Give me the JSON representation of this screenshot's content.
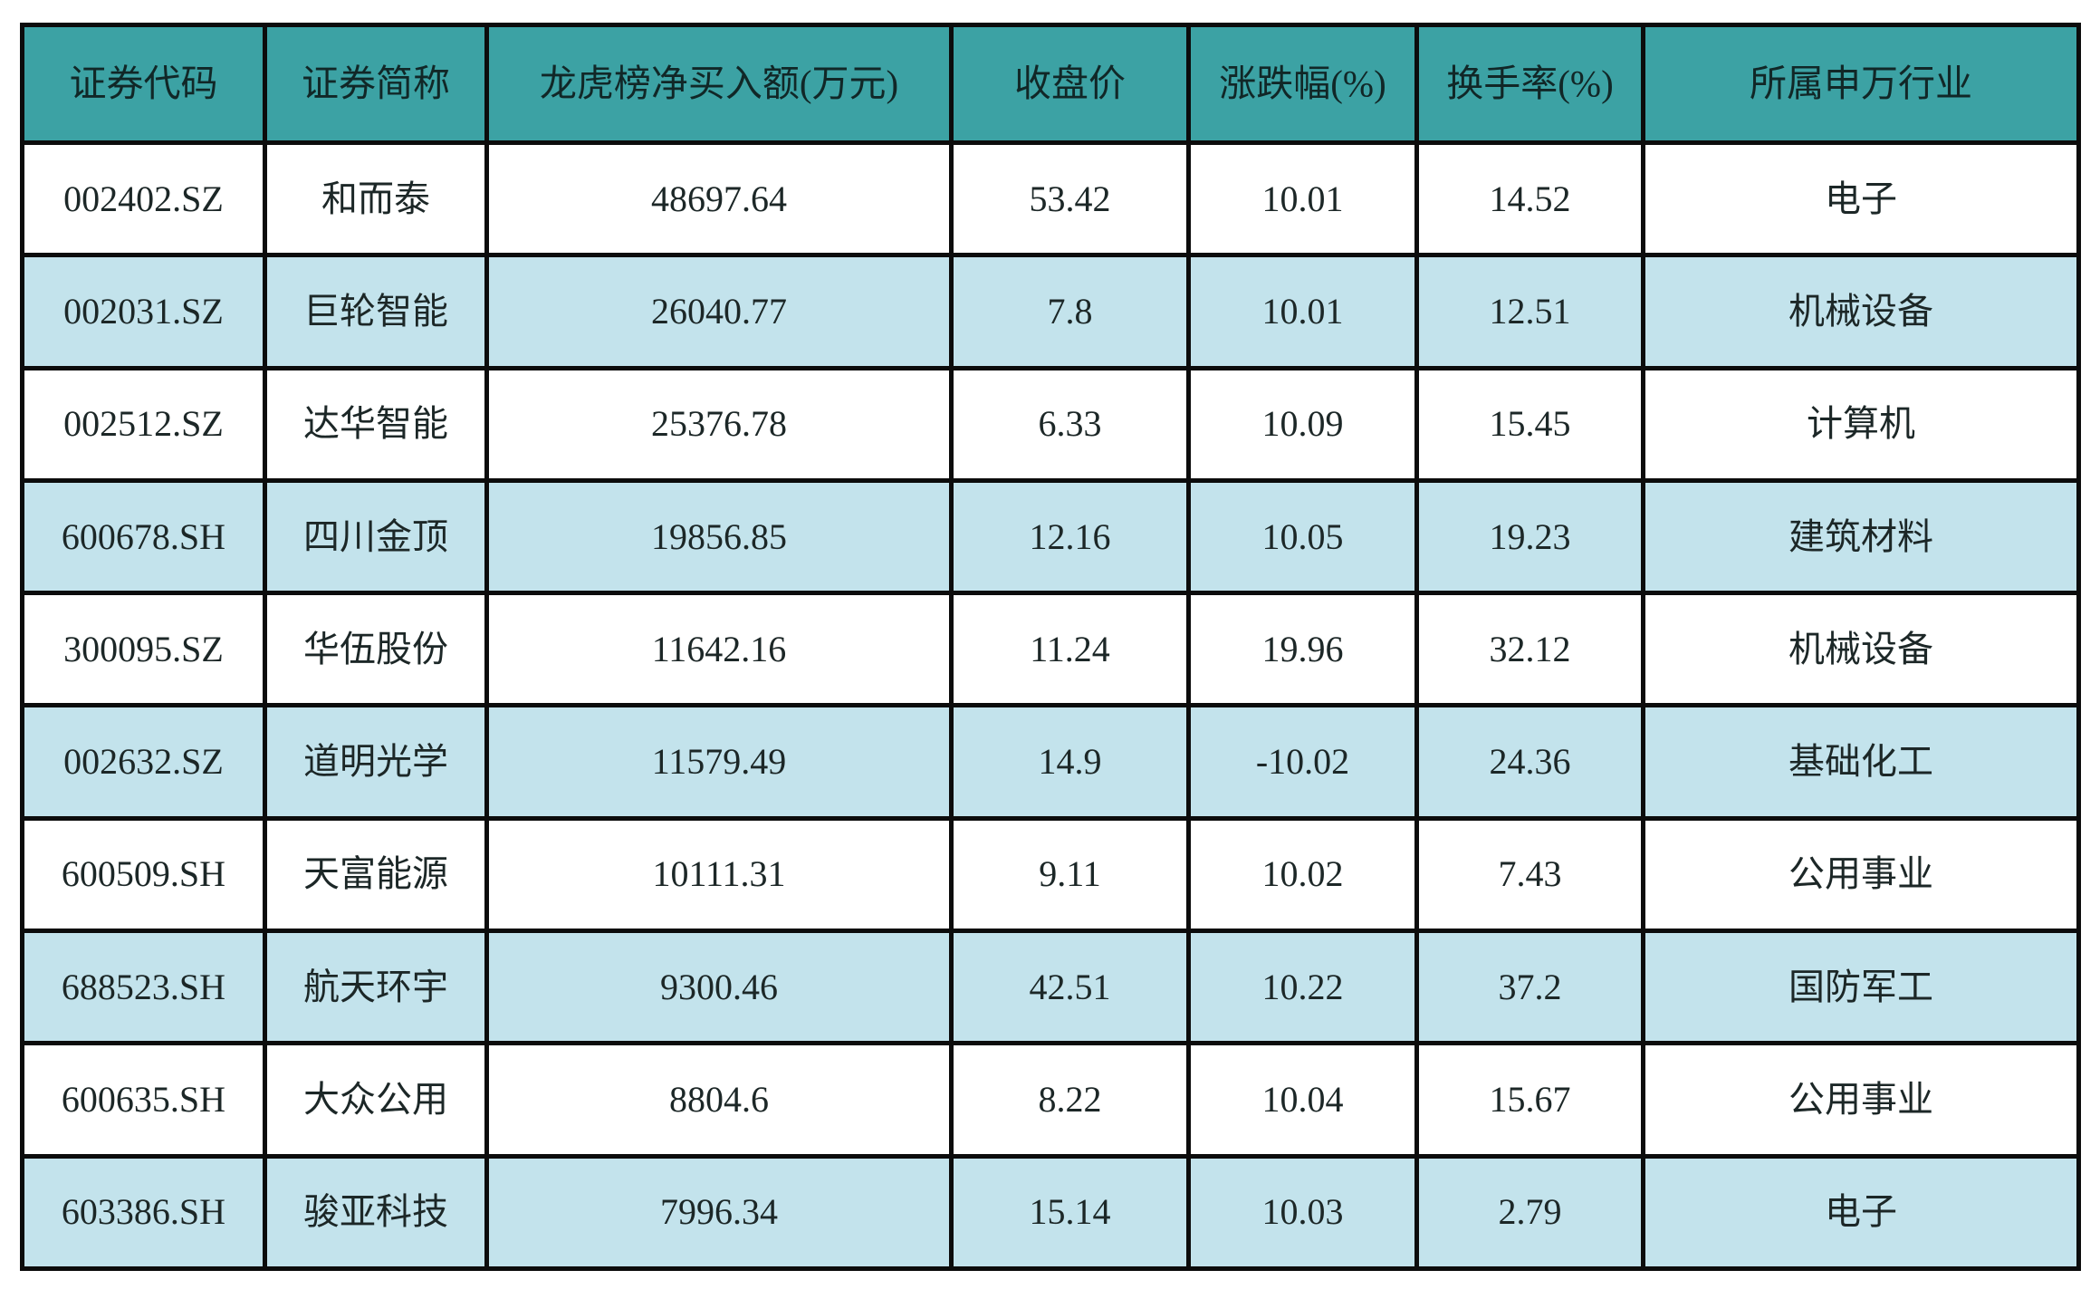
{
  "colors": {
    "header_bg": "#3ca2a4",
    "header_text": "#112727",
    "row_bg": "#ffffff",
    "row_alt_bg": "#c3e3ec",
    "border": "#0c0c0c",
    "text": "#1c2727"
  },
  "table": {
    "columns": [
      "证券代码",
      "证券简称",
      "龙虎榜净买入额(万元)",
      "收盘价",
      "涨跌幅(%)",
      "换手率(%)",
      "所属申万行业"
    ],
    "rows": [
      [
        "002402.SZ",
        "和而泰",
        "48697.64",
        "53.42",
        "10.01",
        "14.52",
        "电子"
      ],
      [
        "002031.SZ",
        "巨轮智能",
        "26040.77",
        "7.8",
        "10.01",
        "12.51",
        "机械设备"
      ],
      [
        "002512.SZ",
        "达华智能",
        "25376.78",
        "6.33",
        "10.09",
        "15.45",
        "计算机"
      ],
      [
        "600678.SH",
        "四川金顶",
        "19856.85",
        "12.16",
        "10.05",
        "19.23",
        "建筑材料"
      ],
      [
        "300095.SZ",
        "华伍股份",
        "11642.16",
        "11.24",
        "19.96",
        "32.12",
        "机械设备"
      ],
      [
        "002632.SZ",
        "道明光学",
        "11579.49",
        "14.9",
        "-10.02",
        "24.36",
        "基础化工"
      ],
      [
        "600509.SH",
        "天富能源",
        "10111.31",
        "9.11",
        "10.02",
        "7.43",
        "公用事业"
      ],
      [
        "688523.SH",
        "航天环宇",
        "9300.46",
        "42.51",
        "10.22",
        "37.2",
        "国防军工"
      ],
      [
        "600635.SH",
        "大众公用",
        "8804.6",
        "8.22",
        "10.04",
        "15.67",
        "公用事业"
      ],
      [
        "603386.SH",
        "骏亚科技",
        "7996.34",
        "15.14",
        "10.03",
        "2.79",
        "电子"
      ]
    ]
  },
  "chart_data": {
    "type": "table",
    "title": "",
    "columns": [
      "证券代码",
      "证券简称",
      "龙虎榜净买入额(万元)",
      "收盘价",
      "涨跌幅(%)",
      "换手率(%)",
      "所属申万行业"
    ],
    "rows": [
      [
        "002402.SZ",
        "和而泰",
        48697.64,
        53.42,
        10.01,
        14.52,
        "电子"
      ],
      [
        "002031.SZ",
        "巨轮智能",
        26040.77,
        7.8,
        10.01,
        12.51,
        "机械设备"
      ],
      [
        "002512.SZ",
        "达华智能",
        25376.78,
        6.33,
        10.09,
        15.45,
        "计算机"
      ],
      [
        "600678.SH",
        "四川金顶",
        19856.85,
        12.16,
        10.05,
        19.23,
        "建筑材料"
      ],
      [
        "300095.SZ",
        "华伍股份",
        11642.16,
        11.24,
        19.96,
        32.12,
        "机械设备"
      ],
      [
        "002632.SZ",
        "道明光学",
        11579.49,
        14.9,
        -10.02,
        24.36,
        "基础化工"
      ],
      [
        "600509.SH",
        "天富能源",
        10111.31,
        9.11,
        10.02,
        7.43,
        "公用事业"
      ],
      [
        "688523.SH",
        "航天环宇",
        9300.46,
        42.51,
        10.22,
        37.2,
        "国防军工"
      ],
      [
        "600635.SH",
        "大众公用",
        8804.6,
        8.22,
        10.04,
        15.67,
        "公用事业"
      ],
      [
        "603386.SH",
        "骏亚科技",
        7996.34,
        15.14,
        10.03,
        2.79,
        "电子"
      ]
    ]
  }
}
